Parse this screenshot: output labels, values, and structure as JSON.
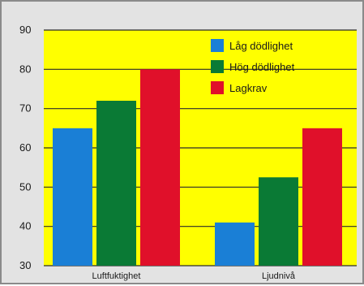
{
  "chart_data": {
    "type": "bar",
    "categories": [
      "Luftfuktighet",
      "Ljudnivå"
    ],
    "series": [
      {
        "name": "Låg dödlighet",
        "values": [
          65,
          41
        ],
        "color": "#1a7fd6"
      },
      {
        "name": "Hög dödlighet",
        "values": [
          72,
          52.5
        ],
        "color": "#0a7a35"
      },
      {
        "name": "Lagkrav",
        "values": [
          80,
          65
        ],
        "color": "#e0102a"
      }
    ],
    "ylim": [
      30,
      90
    ],
    "yticks": [
      30,
      40,
      50,
      60,
      70,
      80,
      90
    ],
    "grid": true,
    "plot_background": "#ffff00",
    "legend_position": "top-right"
  }
}
